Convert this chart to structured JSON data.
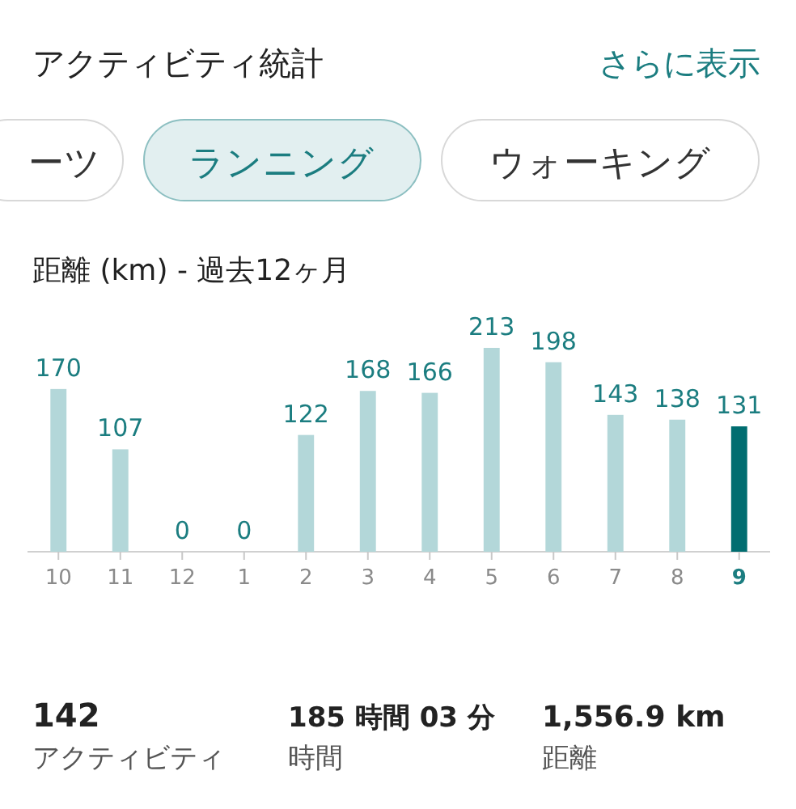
{
  "chart_data": {
    "type": "bar",
    "title": "距離 (km) - 過去12ヶ月",
    "categories": [
      "10",
      "11",
      "12",
      "1",
      "2",
      "3",
      "4",
      "5",
      "6",
      "7",
      "8",
      "9"
    ],
    "values": [
      170,
      107,
      0,
      0,
      122,
      168,
      166,
      213,
      198,
      143,
      138,
      131
    ],
    "colors": [
      "#b3d7d9",
      "#b3d7d9",
      "#b3d7d9",
      "#b3d7d9",
      "#b3d7d9",
      "#b3d7d9",
      "#b3d7d9",
      "#b3d7d9",
      "#b3d7d9",
      "#b3d7d9",
      "#b3d7d9",
      "#006d70"
    ],
    "data_labels": true,
    "annotations": [
      "アクティビティ統計",
      "さらに表示",
      "ーツ",
      "ランニング",
      "ウォーキング",
      "142",
      "アクティビティ",
      "185 時間 03 分",
      "時間",
      "1,556.9 km",
      "距離"
    ]
  }
}
